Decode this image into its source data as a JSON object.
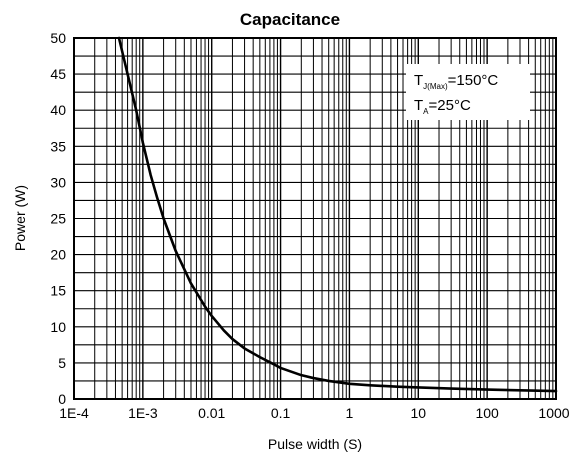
{
  "chart_data": {
    "type": "line",
    "title": "Capacitance",
    "xlabel": "Pulse width (S)",
    "ylabel": "Power (W)",
    "x_scale": "log",
    "xlim": [
      0.0001,
      1000
    ],
    "ylim": [
      0,
      50
    ],
    "x_ticks": [
      "1E-4",
      "1E-3",
      "0.01",
      "0.1",
      "1",
      "10",
      "100",
      "1000"
    ],
    "y_ticks": [
      "0",
      "5",
      "10",
      "15",
      "20",
      "25",
      "30",
      "35",
      "40",
      "45",
      "50"
    ],
    "grid": true,
    "annotation": {
      "line1_main": "T",
      "line1_sub": "J(Max)",
      "line1_rest": "=150°C",
      "line2_main": "T",
      "line2_sub": "A",
      "line2_rest": "=25°C"
    },
    "series": [
      {
        "x": [
          0.00045,
          0.0006,
          0.0008,
          0.001,
          0.0013,
          0.0016,
          0.002,
          0.003,
          0.005,
          0.008,
          0.01,
          0.015,
          0.02,
          0.03,
          0.05,
          0.08,
          0.1,
          0.2,
          0.3,
          0.5,
          1,
          2,
          5,
          10,
          30,
          100,
          300,
          1000
        ],
        "y": [
          50,
          45,
          40,
          35.5,
          31,
          28,
          25,
          20.5,
          16,
          12.8,
          11.5,
          9.5,
          8.3,
          7,
          5.8,
          4.8,
          4.3,
          3.3,
          2.9,
          2.5,
          2.1,
          1.9,
          1.7,
          1.6,
          1.45,
          1.3,
          1.2,
          1.1
        ]
      }
    ]
  }
}
